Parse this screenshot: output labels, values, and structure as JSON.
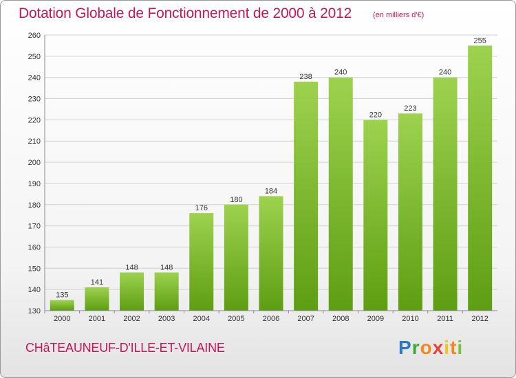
{
  "header": {
    "title": "Dotation Globale de Fonctionnement de 2000 à 2012",
    "subtitle": "(en milliers d'€)"
  },
  "footer": {
    "commune": "CHâTEAUNEUF-D'ILLE-ET-VILAINE",
    "brand": "Proxiti"
  },
  "colors": {
    "title": "#c2185b",
    "bar_top": "#9dd24f",
    "bar_bottom": "#5e9e12",
    "grid": "#d0d0d0",
    "axis_text": "#333333"
  },
  "chart_data": {
    "type": "bar",
    "categories": [
      "2000",
      "2001",
      "2002",
      "2003",
      "2004",
      "2005",
      "2006",
      "2007",
      "2008",
      "2009",
      "2010",
      "2011",
      "2012"
    ],
    "values": [
      135,
      141,
      148,
      148,
      176,
      180,
      184,
      238,
      240,
      220,
      223,
      240,
      255
    ],
    "title": "Dotation Globale de Fonctionnement de 2000 à 2012",
    "subtitle": "(en milliers d'€)",
    "xlabel": "",
    "ylabel": "",
    "ylim": [
      130,
      260
    ],
    "yticks": [
      130,
      140,
      150,
      160,
      170,
      180,
      190,
      200,
      210,
      220,
      230,
      240,
      250,
      260
    ],
    "grid": true,
    "data_labels": true
  }
}
